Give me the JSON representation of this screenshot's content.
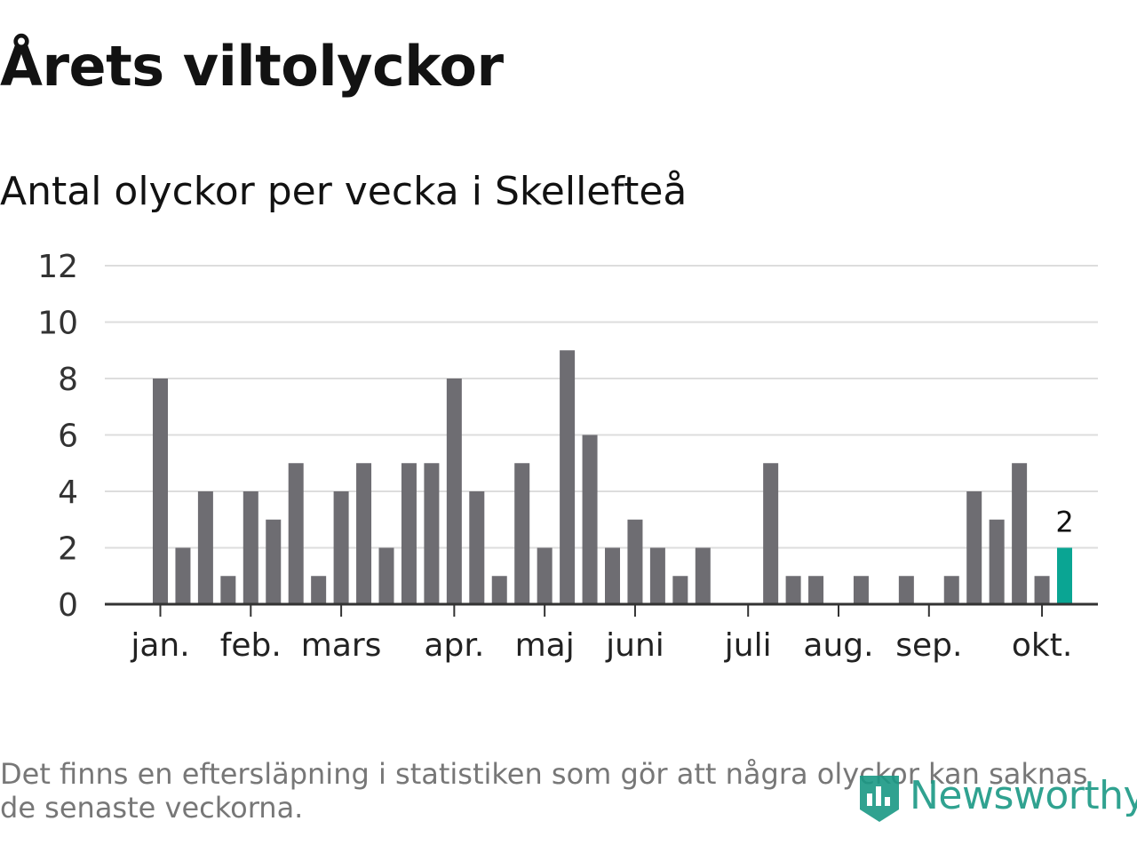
{
  "title": "Årets viltolyckor",
  "subtitle": "Antal olyckor per vecka i Skellefteå",
  "footnote": "Det finns en eftersläpning i statistiken som gör att några olyckor kan saknas de senaste veckorna.",
  "brand": {
    "name": "Newsworthy",
    "color": "#1a9985"
  },
  "colors": {
    "bar": "#6e6d72",
    "highlight": "#0aa593",
    "grid": "#dddddd",
    "axis": "#333333"
  },
  "chart_data": {
    "type": "bar",
    "title": "Antal olyckor per vecka i Skellefteå",
    "xlabel": "",
    "ylabel": "",
    "ylim": [
      0,
      12
    ],
    "yticks": [
      0,
      2,
      4,
      6,
      8,
      10,
      12
    ],
    "grid": true,
    "weeks": [
      1,
      2,
      3,
      4,
      5,
      6,
      7,
      8,
      9,
      10,
      11,
      12,
      13,
      14,
      15,
      16,
      17,
      18,
      19,
      20,
      21,
      22,
      23,
      24,
      25,
      26,
      27,
      28,
      29,
      30,
      31,
      32,
      33,
      34,
      35,
      36,
      37,
      38,
      39,
      40,
      41,
      42,
      43,
      44
    ],
    "values": [
      8,
      2,
      4,
      1,
      4,
      3,
      5,
      1,
      4,
      5,
      2,
      5,
      5,
      8,
      4,
      1,
      5,
      2,
      9,
      6,
      2,
      3,
      2,
      1,
      2,
      0,
      0,
      5,
      1,
      1,
      0,
      1,
      0,
      1,
      0,
      1,
      4,
      3,
      5,
      1,
      2,
      0,
      0,
      0
    ],
    "highlight_index": 40,
    "highlight_label": "2",
    "month_ticks": [
      {
        "label": "jan.",
        "index": 0
      },
      {
        "label": "feb.",
        "index": 4
      },
      {
        "label": "mars",
        "index": 8
      },
      {
        "label": "apr.",
        "index": 13
      },
      {
        "label": "maj",
        "index": 17
      },
      {
        "label": "juni",
        "index": 21
      },
      {
        "label": "juli",
        "index": 26
      },
      {
        "label": "aug.",
        "index": 30
      },
      {
        "label": "sep.",
        "index": 34
      },
      {
        "label": "okt.",
        "index": 39
      }
    ]
  }
}
